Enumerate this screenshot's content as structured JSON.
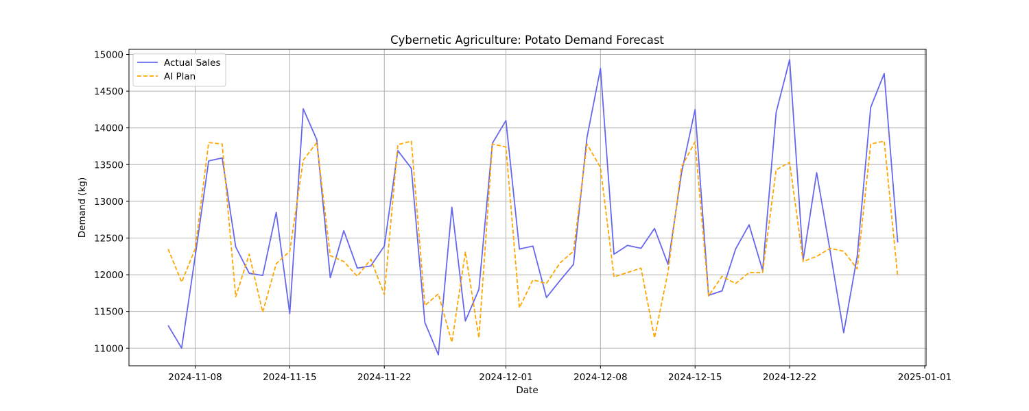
{
  "chart_data": {
    "type": "line",
    "title": "Cybernetic Agriculture: Potato Demand Forecast",
    "xlabel": "Date",
    "ylabel": "Demand (kg)",
    "x_start": "2024-11-06",
    "x": [
      "2024-11-06",
      "2024-11-07",
      "2024-11-08",
      "2024-11-09",
      "2024-11-10",
      "2024-11-11",
      "2024-11-12",
      "2024-11-13",
      "2024-11-14",
      "2024-11-15",
      "2024-11-16",
      "2024-11-17",
      "2024-11-18",
      "2024-11-19",
      "2024-11-20",
      "2024-11-21",
      "2024-11-22",
      "2024-11-23",
      "2024-11-24",
      "2024-11-25",
      "2024-11-26",
      "2024-11-27",
      "2024-11-28",
      "2024-11-29",
      "2024-11-30",
      "2024-12-01",
      "2024-12-02",
      "2024-12-03",
      "2024-12-04",
      "2024-12-05",
      "2024-12-06",
      "2024-12-07",
      "2024-12-08",
      "2024-12-09",
      "2024-12-10",
      "2024-12-11",
      "2024-12-12",
      "2024-12-13",
      "2024-12-14",
      "2024-12-15",
      "2024-12-16",
      "2024-12-17",
      "2024-12-18",
      "2024-12-19",
      "2024-12-20",
      "2024-12-21",
      "2024-12-22",
      "2024-12-23",
      "2024-12-24",
      "2024-12-25",
      "2024-12-26",
      "2024-12-27",
      "2024-12-28",
      "2024-12-29",
      "2024-12-30"
    ],
    "series": [
      {
        "name": "Actual Sales",
        "color": "#6666ee",
        "style": "solid",
        "values": [
          11310,
          11000,
          12250,
          13550,
          13590,
          12380,
          12020,
          11990,
          12850,
          11470,
          14260,
          13840,
          11960,
          12600,
          12090,
          12120,
          12390,
          13690,
          13450,
          11350,
          10910,
          12920,
          11370,
          11800,
          13790,
          14100,
          12350,
          12390,
          11690,
          11920,
          12140,
          13870,
          14810,
          12280,
          12400,
          12360,
          12630,
          12140,
          13390,
          14250,
          11720,
          11780,
          12350,
          12680,
          12060,
          14210,
          14930,
          12200,
          13390,
          12320,
          11210,
          12250,
          14280,
          14740,
          12440
        ]
      },
      {
        "name": "AI Plan",
        "color": "#ffa500",
        "style": "dashed",
        "values": [
          12350,
          11900,
          12350,
          13800,
          13780,
          11700,
          12280,
          11490,
          12150,
          12320,
          13560,
          13800,
          12260,
          12180,
          11980,
          12210,
          11730,
          13770,
          13820,
          11580,
          11740,
          11080,
          12310,
          11140,
          13780,
          13740,
          11550,
          11930,
          11880,
          12160,
          12320,
          13780,
          13460,
          11970,
          12030,
          12090,
          11140,
          12040,
          13470,
          13810,
          11710,
          11980,
          11880,
          12030,
          12030,
          13430,
          13530,
          12180,
          12250,
          12360,
          12320,
          12080,
          13780,
          13820,
          11970
        ]
      }
    ],
    "x_ticks": [
      "2024-11-08",
      "2024-11-15",
      "2024-11-22",
      "2024-12-01",
      "2024-12-08",
      "2024-12-15",
      "2024-12-22",
      "2025-01-01"
    ],
    "y_ticks": [
      11000,
      11500,
      12000,
      12500,
      13000,
      13500,
      14000,
      14500,
      15000
    ],
    "xlim": [
      "2024-11-03",
      "2025-01-01"
    ],
    "ylim": [
      10760,
      15070
    ],
    "grid": true,
    "legend_position": "top-left"
  }
}
